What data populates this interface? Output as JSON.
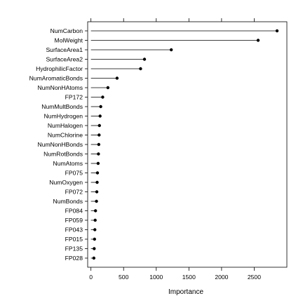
{
  "chart_data": {
    "type": "lollipop",
    "orientation": "horizontal",
    "categories": [
      "NumCarbon",
      "MolWeight",
      "SurfaceArea1",
      "SurfaceArea2",
      "HydrophilicFactor",
      "NumAromaticBonds",
      "NumNonHAtoms",
      "FP172",
      "NumMultBonds",
      "NumHydrogen",
      "NumHalogen",
      "NumChlorine",
      "NumNonHBonds",
      "NumRotBonds",
      "NumAtoms",
      "FP075",
      "NumOxygen",
      "FP072",
      "NumBonds",
      "FP084",
      "FP059",
      "FP043",
      "FP015",
      "FP135",
      "FP028"
    ],
    "values": [
      2850,
      2560,
      1230,
      820,
      760,
      400,
      260,
      180,
      150,
      140,
      130,
      125,
      120,
      115,
      110,
      100,
      95,
      90,
      85,
      70,
      65,
      60,
      55,
      50,
      45
    ],
    "xlabel": "Importance",
    "ylabel": "",
    "xlim": [
      -50,
      3000
    ],
    "xticks": [
      0,
      500,
      1000,
      1500,
      2000,
      2500
    ],
    "tick_labels": [
      "0",
      "500",
      "1000",
      "1500",
      "2000",
      "2500"
    ],
    "top_ticks": true,
    "grid": false,
    "colors": {
      "line": "#000000",
      "point": "#000000",
      "axis": "#000000"
    }
  }
}
